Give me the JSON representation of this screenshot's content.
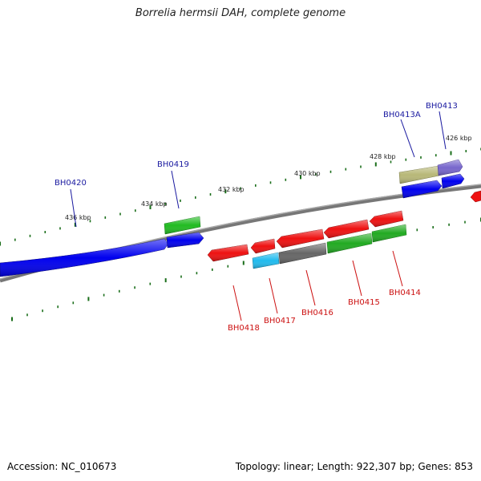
{
  "title": "Borrelia hermsii DAH, complete genome",
  "footer": {
    "accession": "Accession: NC_010673",
    "summary": "Topology: linear; Length: 922,307 bp; Genes: 853"
  },
  "colors": {
    "backbone": "#777777",
    "tick": "#1a6e1a",
    "label_forward": "#1a1aa0",
    "label_reverse": "#cc1111"
  },
  "scale_labels": [
    "436 kbp",
    "434 kbp",
    "432 kbp",
    "430 kbp",
    "428 kbp",
    "426 kbp"
  ],
  "forward_genes": [
    {
      "label": "BH0420",
      "color": "#0000ee"
    },
    {
      "label": "BH0419",
      "color": "#22bb22"
    },
    {
      "label": "BH0413A",
      "color": "#b8b878"
    },
    {
      "label": "BH0413",
      "color": "#7766cc"
    }
  ],
  "forward_unlabeled_colors": [
    "#0000ee",
    "#0000ee",
    "#0000ee"
  ],
  "reverse_genes": [
    {
      "label": "BH0418",
      "color": "#ee1111"
    },
    {
      "label": "BH0417",
      "color": "#ee1111"
    },
    {
      "label": "BH0416",
      "color": "#ee1111"
    },
    {
      "label": "BH0415",
      "color": "#ee1111"
    },
    {
      "label": "BH0414",
      "color": "#ee1111"
    }
  ],
  "reverse_unlabeled_colors": [
    "#22bbee",
    "#666666",
    "#22aa22",
    "#22aa22",
    "#ee1111"
  ]
}
